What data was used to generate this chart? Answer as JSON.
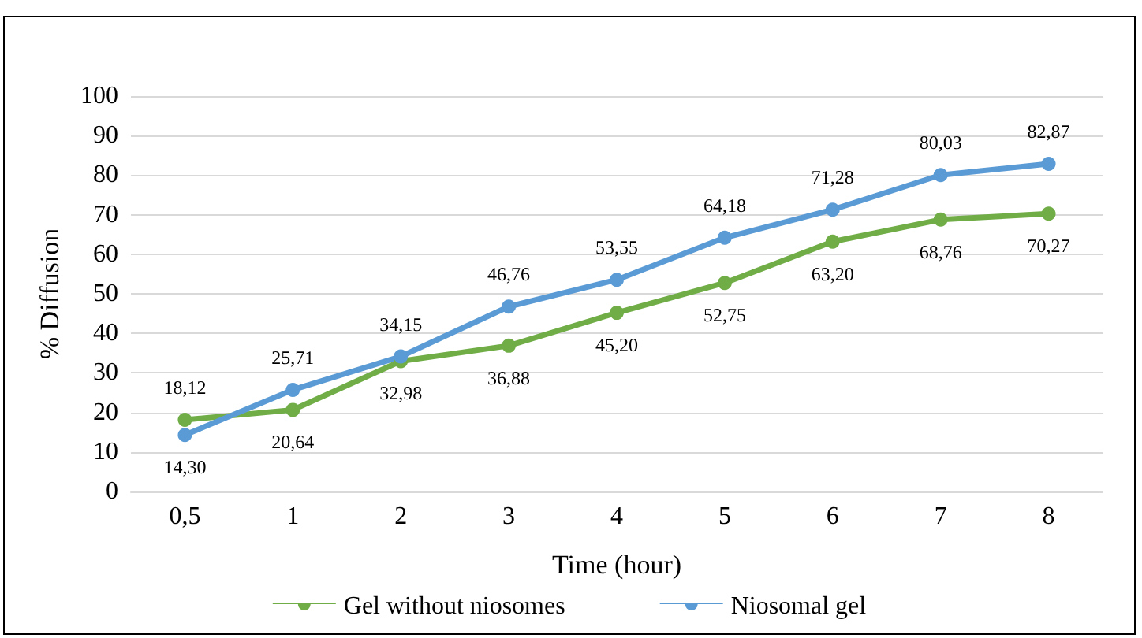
{
  "chart_data": {
    "type": "line",
    "xlabel": "Time (hour)",
    "ylabel": "% Diffusion",
    "categories": [
      "0,5",
      "1",
      "2",
      "3",
      "4",
      "5",
      "6",
      "7",
      "8"
    ],
    "ylim": [
      0,
      100
    ],
    "yticks": [
      0,
      10,
      20,
      30,
      40,
      50,
      60,
      70,
      80,
      90,
      100
    ],
    "grid": "y",
    "legend": "bottom",
    "marker": "circle",
    "line_style": "solid",
    "series": [
      {
        "name": "Gel without niosomes",
        "color": "#70ad47",
        "values": [
          18.12,
          20.64,
          32.98,
          36.88,
          45.2,
          52.75,
          63.2,
          68.76,
          70.27
        ],
        "value_labels": [
          "18,12",
          "20,64",
          "32,98",
          "36,88",
          "45,20",
          "52,75",
          "63,20",
          "68,76",
          "70,27"
        ]
      },
      {
        "name": "Niosomal gel",
        "color": "#5b9bd5",
        "values": [
          14.3,
          25.71,
          34.15,
          46.76,
          53.55,
          64.18,
          71.28,
          80.03,
          82.87
        ],
        "value_labels": [
          "14,30",
          "25,71",
          "34,15",
          "46,76",
          "53,55",
          "64,18",
          "71,28",
          "80,03",
          "82,87"
        ]
      }
    ]
  }
}
